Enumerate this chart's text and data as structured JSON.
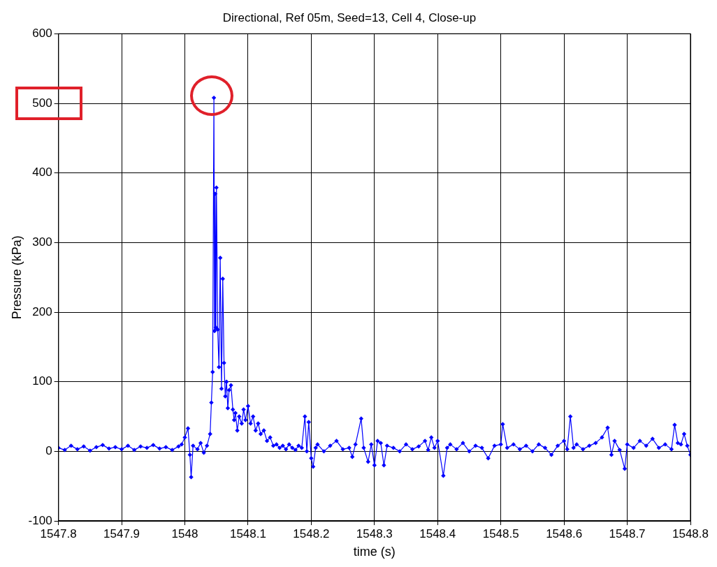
{
  "chart_data": {
    "type": "line",
    "title": "Directional, Ref 05m, Seed=13, Cell 4, Close-up",
    "xlabel": "time (s)",
    "ylabel": "Pressure (kPa)",
    "xlim": [
      1547.8,
      1548.8
    ],
    "xticks": [
      1547.8,
      1547.9,
      1548,
      1548.1,
      1548.2,
      1548.3,
      1548.4,
      1548.5,
      1548.6,
      1548.7,
      1548.8
    ],
    "ylim": [
      -100,
      600
    ],
    "yticks": [
      -100,
      0,
      100,
      200,
      300,
      400,
      500,
      600
    ],
    "grid": true,
    "marker": "diamond",
    "line_style": "solid",
    "series": [
      {
        "color": "#0000ff",
        "x": [
          1547.8,
          1547.81,
          1547.82,
          1547.83,
          1547.84,
          1547.85,
          1547.86,
          1547.87,
          1547.88,
          1547.89,
          1547.9,
          1547.91,
          1547.92,
          1547.93,
          1547.94,
          1547.95,
          1547.96,
          1547.97,
          1547.98,
          1547.99,
          1547.995,
          1548,
          1548.005,
          1548.008,
          1548.01,
          1548.013,
          1548.02,
          1548.025,
          1548.03,
          1548.035,
          1548.04,
          1548.042,
          1548.044,
          1548.046,
          1548.047,
          1548.048,
          1548.049,
          1548.05,
          1548.052,
          1548.054,
          1548.056,
          1548.058,
          1548.06,
          1548.062,
          1548.064,
          1548.066,
          1548.068,
          1548.07,
          1548.073,
          1548.076,
          1548.078,
          1548.08,
          1548.083,
          1548.086,
          1548.09,
          1548.093,
          1548.096,
          1548.1,
          1548.104,
          1548.108,
          1548.112,
          1548.116,
          1548.12,
          1548.125,
          1548.13,
          1548.135,
          1548.14,
          1548.145,
          1548.15,
          1548.155,
          1548.16,
          1548.165,
          1548.17,
          1548.175,
          1548.18,
          1548.185,
          1548.19,
          1548.193,
          1548.196,
          1548.2,
          1548.203,
          1548.207,
          1548.21,
          1548.22,
          1548.23,
          1548.24,
          1548.25,
          1548.26,
          1548.265,
          1548.27,
          1548.279,
          1548.283,
          1548.29,
          1548.295,
          1548.3,
          1548.305,
          1548.31,
          1548.315,
          1548.32,
          1548.33,
          1548.34,
          1548.35,
          1548.36,
          1548.37,
          1548.38,
          1548.385,
          1548.39,
          1548.395,
          1548.4,
          1548.409,
          1548.415,
          1548.42,
          1548.43,
          1548.44,
          1548.45,
          1548.46,
          1548.47,
          1548.48,
          1548.49,
          1548.5,
          1548.503,
          1548.51,
          1548.52,
          1548.53,
          1548.54,
          1548.55,
          1548.56,
          1548.57,
          1548.58,
          1548.59,
          1548.6,
          1548.605,
          1548.61,
          1548.615,
          1548.62,
          1548.63,
          1548.64,
          1548.65,
          1548.66,
          1548.669,
          1548.675,
          1548.68,
          1548.688,
          1548.696,
          1548.7,
          1548.71,
          1548.72,
          1548.73,
          1548.74,
          1548.75,
          1548.76,
          1548.77,
          1548.775,
          1548.78,
          1548.785,
          1548.79,
          1548.795,
          1548.8
        ],
        "values": [
          5,
          2,
          8,
          3,
          7,
          1,
          6,
          9,
          4,
          6,
          3,
          8,
          2,
          7,
          5,
          9,
          4,
          6,
          2,
          7,
          10,
          20,
          33,
          -5,
          -37,
          8,
          3,
          12,
          -2,
          8,
          25,
          70,
          114,
          508,
          173,
          370,
          178,
          379,
          175,
          121,
          278,
          90,
          248,
          127,
          79,
          100,
          62,
          88,
          95,
          60,
          45,
          55,
          30,
          50,
          40,
          60,
          45,
          65,
          40,
          50,
          30,
          40,
          25,
          30,
          15,
          20,
          8,
          10,
          5,
          8,
          3,
          10,
          5,
          2,
          8,
          5,
          50,
          0,
          42,
          -10,
          -22,
          5,
          10,
          0,
          8,
          15,
          3,
          5,
          -8,
          10,
          47,
          5,
          -15,
          10,
          -20,
          15,
          12,
          -20,
          8,
          5,
          0,
          10,
          3,
          7,
          15,
          2,
          20,
          5,
          15,
          -35,
          5,
          10,
          3,
          12,
          0,
          8,
          5,
          -10,
          8,
          10,
          39,
          5,
          10,
          3,
          8,
          0,
          10,
          5,
          -5,
          8,
          15,
          3,
          50,
          5,
          10,
          3,
          8,
          12,
          20,
          34,
          -5,
          15,
          2,
          -25,
          10,
          5,
          15,
          8,
          18,
          5,
          10,
          3,
          38,
          12,
          10,
          25,
          8,
          -5
        ]
      }
    ]
  }
}
